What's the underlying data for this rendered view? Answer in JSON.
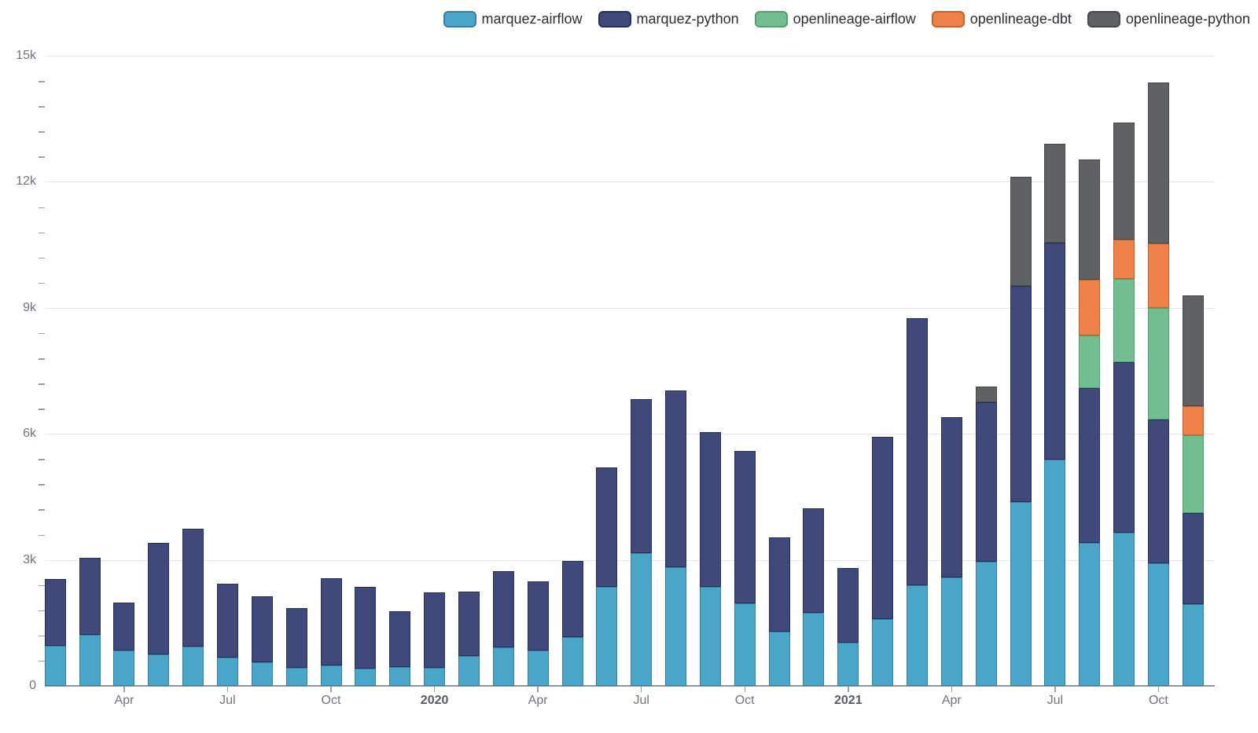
{
  "chart_data": {
    "type": "bar",
    "stacked": true,
    "title": "",
    "legend_position": "top-right",
    "grid": true,
    "background_color": "#ffffff",
    "months": [
      "Feb 2019",
      "Mar 2019",
      "Apr 2019",
      "May 2019",
      "Jun 2019",
      "Jul 2019",
      "Aug 2019",
      "Sep 2019",
      "Oct 2019",
      "Nov 2019",
      "Dec 2019",
      "Jan 2020",
      "Feb 2020",
      "Mar 2020",
      "Apr 2020",
      "May 2020",
      "Jun 2020",
      "Jul 2020",
      "Aug 2020",
      "Sep 2020",
      "Oct 2020",
      "Nov 2020",
      "Dec 2020",
      "Jan 2021",
      "Feb 2021",
      "Mar 2021",
      "Apr 2021",
      "May 2021",
      "Jun 2021",
      "Jul 2021",
      "Aug 2021",
      "Sep 2021",
      "Oct 2021",
      "Nov 2021"
    ],
    "x_ticks": [
      {
        "index": 2,
        "label": "Apr",
        "bold": false
      },
      {
        "index": 5,
        "label": "Jul",
        "bold": false
      },
      {
        "index": 8,
        "label": "Oct",
        "bold": false
      },
      {
        "index": 11,
        "label": "2020",
        "bold": true
      },
      {
        "index": 14,
        "label": "Apr",
        "bold": false
      },
      {
        "index": 17,
        "label": "Jul",
        "bold": false
      },
      {
        "index": 20,
        "label": "Oct",
        "bold": false
      },
      {
        "index": 23,
        "label": "2021",
        "bold": true
      },
      {
        "index": 26,
        "label": "Apr",
        "bold": false
      },
      {
        "index": 29,
        "label": "Jul",
        "bold": false
      },
      {
        "index": 32,
        "label": "Oct",
        "bold": false
      }
    ],
    "y_axis": {
      "min": 0,
      "max": 15000,
      "major_step": 3000,
      "minor_step": 600,
      "labels": [
        "0",
        "3k",
        "6k",
        "9k",
        "12k",
        "15k"
      ]
    },
    "series": [
      {
        "name": "marquez-airflow",
        "color": "#4aa6c9",
        "border_color": "#357fa5",
        "values": [
          960,
          1220,
          850,
          750,
          930,
          670,
          570,
          440,
          490,
          420,
          450,
          440,
          720,
          920,
          840,
          1160,
          2350,
          3170,
          2830,
          2360,
          1960,
          1290,
          1740,
          1030,
          1600,
          2390,
          2580,
          2950,
          4370,
          5390,
          3400,
          3640,
          2920,
          1940
        ]
      },
      {
        "name": "marquez-python",
        "color": "#41497b",
        "border_color": "#262e5b",
        "values": [
          1590,
          1830,
          1130,
          2660,
          2820,
          1770,
          1570,
          1420,
          2080,
          1930,
          1320,
          1780,
          1520,
          1810,
          1650,
          1810,
          2850,
          3660,
          4210,
          3680,
          3630,
          2240,
          2480,
          1780,
          4330,
          6360,
          3810,
          3810,
          5150,
          5160,
          3680,
          4060,
          3430,
          2170
        ]
      },
      {
        "name": "openlineage-airflow",
        "color": "#72be90",
        "border_color": "#4fa06f",
        "values": [
          0,
          0,
          0,
          0,
          0,
          0,
          0,
          0,
          0,
          0,
          0,
          0,
          0,
          0,
          0,
          0,
          0,
          0,
          0,
          0,
          0,
          0,
          0,
          0,
          0,
          0,
          0,
          0,
          0,
          0,
          1260,
          1980,
          2640,
          1860
        ]
      },
      {
        "name": "openlineage-dbt",
        "color": "#ee8147",
        "border_color": "#c96127",
        "values": [
          0,
          0,
          0,
          0,
          0,
          0,
          0,
          0,
          0,
          0,
          0,
          0,
          0,
          0,
          0,
          0,
          0,
          0,
          0,
          0,
          0,
          0,
          0,
          0,
          0,
          0,
          0,
          0,
          0,
          0,
          1330,
          940,
          1540,
          700
        ]
      },
      {
        "name": "openlineage-python",
        "color": "#606164",
        "border_color": "#47484a",
        "values": [
          0,
          0,
          0,
          0,
          0,
          0,
          0,
          0,
          0,
          0,
          0,
          0,
          0,
          0,
          0,
          0,
          0,
          0,
          0,
          0,
          0,
          0,
          0,
          0,
          0,
          0,
          0,
          360,
          2600,
          2350,
          2860,
          2790,
          3830,
          2620
        ]
      }
    ]
  }
}
